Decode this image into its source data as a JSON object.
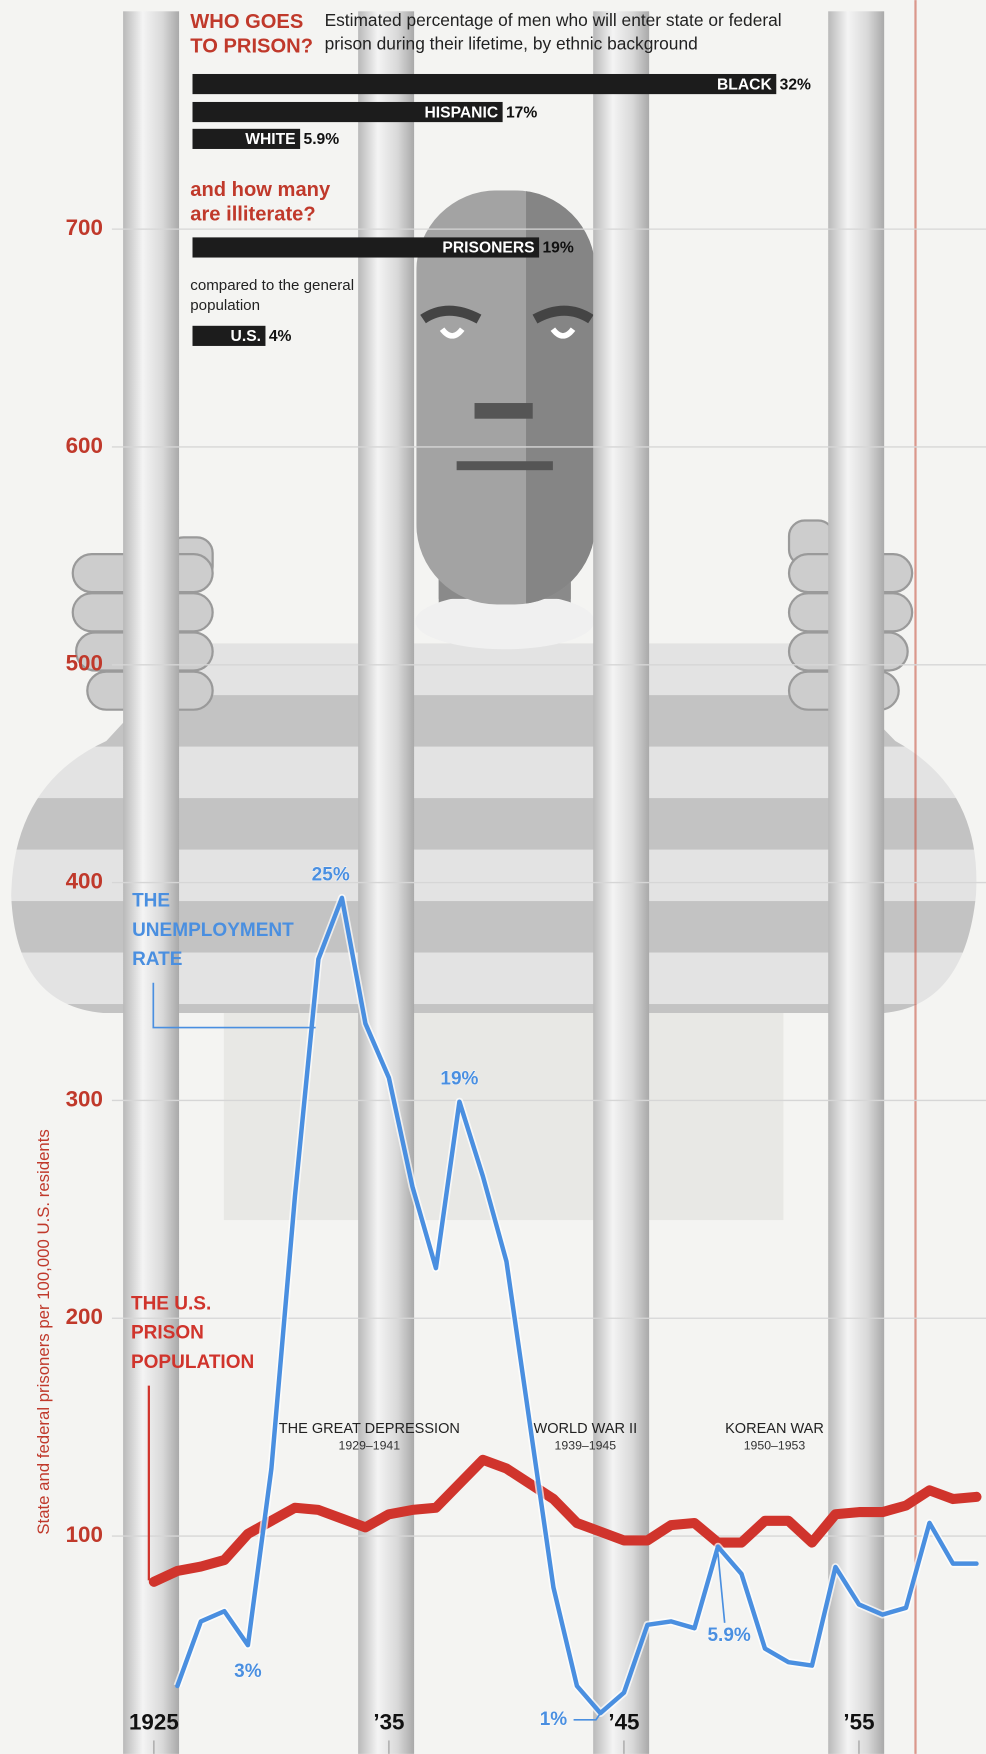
{
  "chart_data": [
    {
      "type": "line",
      "ylabel": "State and federal prisoners per 100,000 U.S. residents",
      "x": [
        1925,
        1926,
        1927,
        1928,
        1929,
        1930,
        1931,
        1932,
        1933,
        1934,
        1935,
        1936,
        1937,
        1938,
        1939,
        1940,
        1941,
        1942,
        1943,
        1944,
        1945,
        1946,
        1947,
        1948,
        1949,
        1950,
        1951,
        1952,
        1953,
        1954,
        1955,
        1956,
        1957,
        1958,
        1959,
        1960
      ],
      "xlim": [
        1924.5,
        1960.5
      ],
      "xticks": [
        {
          "value": 1925,
          "label": "1925"
        },
        {
          "value": 1935,
          "label": "’35"
        },
        {
          "value": 1945,
          "label": "’45"
        },
        {
          "value": 1955,
          "label": "’55"
        }
      ],
      "ylim": [
        0,
        800
      ],
      "yticks": [
        100,
        200,
        300,
        400,
        500,
        600,
        700
      ],
      "y2lim": [
        -0.2,
        51.1
      ],
      "grid": true,
      "series": [
        {
          "name": "THE U.S. PRISON POPULATION",
          "color": "#d0342c",
          "values": [
            79,
            84,
            86,
            89,
            101,
            107,
            113,
            112,
            108,
            104,
            110,
            112,
            113,
            124,
            135,
            131,
            124,
            117,
            106,
            102,
            98,
            98,
            105,
            106,
            97,
            97,
            107,
            107,
            97,
            110,
            111,
            111,
            114,
            121,
            117,
            118
          ]
        },
        {
          "name": "THE UNEMPLOYMENT RATE",
          "color": "#4a8fe0",
          "axis": "y2",
          "values": [
            null,
            1.8,
            3.7,
            4.0,
            3,
            8.2,
            16.2,
            23.2,
            25,
            21.3,
            19.7,
            16.5,
            14.1,
            19,
            16.8,
            14.3,
            9.5,
            4.7,
            1.8,
            1,
            1.6,
            3.6,
            3.7,
            3.5,
            5.9,
            5.1,
            2.9,
            2.5,
            2.4,
            5.3,
            4.2,
            3.9,
            4.1,
            6.6,
            5.4,
            5.4
          ],
          "value_labels": [
            null,
            null,
            null,
            null,
            "3%",
            null,
            null,
            null,
            "25%",
            null,
            null,
            null,
            null,
            "19%",
            null,
            null,
            null,
            null,
            null,
            "1%",
            null,
            null,
            null,
            null,
            "5.9%",
            null,
            null,
            null,
            null,
            null,
            null,
            null,
            null,
            null,
            null,
            null
          ]
        }
      ],
      "annotations": [
        {
          "text": "THE GREAT DEPRESSION",
          "period": "1929–1941"
        },
        {
          "text": "WORLD WAR II",
          "period": "1939–1945"
        },
        {
          "text": "KOREAN WAR",
          "period": "1950–1953"
        }
      ]
    },
    {
      "type": "bar",
      "orientation": "horizontal",
      "title": "WHO GOES TO PRISON?",
      "subtitle": "Estimated percentage of men who will enter state or federal prison during their lifetime, by ethnic background",
      "categories": [
        "BLACK",
        "HISPANIC",
        "WHITE"
      ],
      "values": [
        32,
        17,
        5.9
      ],
      "value_labels": [
        "32%",
        "17%",
        "5.9%"
      ],
      "color": "#1c1c1c"
    },
    {
      "type": "bar",
      "orientation": "horizontal",
      "title": "and how many are illiterate?",
      "note": "compared to the general population",
      "categories": [
        "PRISONERS",
        "U.S."
      ],
      "values": [
        19,
        4
      ],
      "value_labels": [
        "19%",
        "4%"
      ],
      "color": "#1c1c1c"
    }
  ]
}
